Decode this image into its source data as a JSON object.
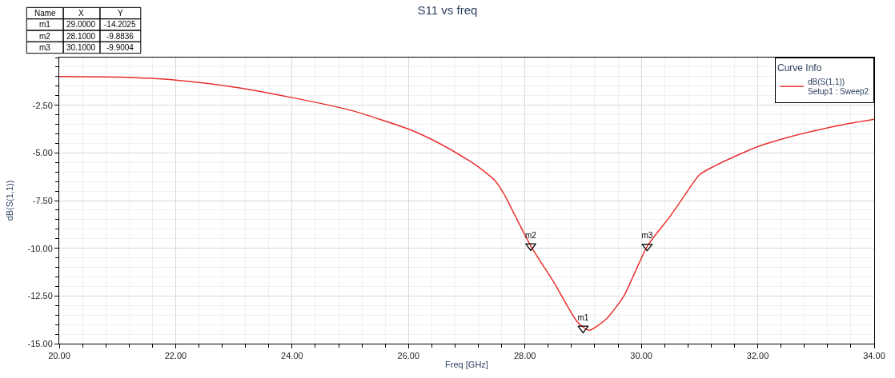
{
  "chart_data": {
    "type": "line",
    "title": "S11 vs freq",
    "xlabel": "Freq [GHz]",
    "ylabel": "dB(S(1,1))",
    "legend_title": "Curve Info",
    "xlim": [
      20,
      34
    ],
    "ylim": [
      -15,
      0
    ],
    "xticks": [
      {
        "value": 20,
        "label": "20.00"
      },
      {
        "value": 22,
        "label": "22.00"
      },
      {
        "value": 24,
        "label": "24.00"
      },
      {
        "value": 26,
        "label": "26.00"
      },
      {
        "value": 28,
        "label": "28.00"
      },
      {
        "value": 30,
        "label": "30.00"
      },
      {
        "value": 32,
        "label": "32.00"
      },
      {
        "value": 34,
        "label": "34.00"
      }
    ],
    "yticks": [
      {
        "value": -15,
        "label": "-15.00"
      },
      {
        "value": -12.5,
        "label": "-12.50"
      },
      {
        "value": -10,
        "label": "-10.00"
      },
      {
        "value": -7.5,
        "label": "-7.50"
      },
      {
        "value": -5,
        "label": "-5.00"
      },
      {
        "value": -2.5,
        "label": "-2.50"
      }
    ],
    "grid": true,
    "legend": "top right",
    "series": [
      {
        "name": "dB(S(1,1))\nSetup1 : Sweep2",
        "color": "#e8312f",
        "x": [
          20,
          21,
          22,
          23,
          24,
          25,
          26,
          26.5,
          27,
          27.25,
          27.5,
          27.65,
          27.8,
          28.1,
          28.5,
          28.9,
          29.1,
          29.4,
          29.7,
          30.1,
          30.5,
          30.75,
          31,
          31.25,
          31.5,
          32,
          32.5,
          33,
          33.5,
          34
        ],
        "values": [
          -1.0,
          -1.03,
          -1.18,
          -1.55,
          -2.1,
          -2.76,
          -3.75,
          -4.45,
          -5.33,
          -5.85,
          -6.5,
          -7.2,
          -8.1,
          -9.88,
          -11.8,
          -13.86,
          -14.3,
          -13.7,
          -12.5,
          -9.9,
          -8.3,
          -7.2,
          -6.14,
          -5.7,
          -5.33,
          -4.67,
          -4.2,
          -3.82,
          -3.5,
          -3.24
        ]
      },
      {
        "type": "scatter",
        "color": "#000000",
        "marker": "triangle",
        "x": [
          29.0,
          28.1,
          30.1
        ],
        "values": [
          -14.2025,
          -9.8836,
          -9.9004
        ],
        "value_labels": [
          "m1",
          "m2",
          "m3"
        ]
      }
    ],
    "annotations": [
      "Name",
      "X",
      "Y",
      "m1",
      "29.0000",
      "-14.2025",
      "m2",
      "28.1000",
      "-9.8836",
      "m3",
      "30.1000",
      "-9.9004"
    ]
  }
}
